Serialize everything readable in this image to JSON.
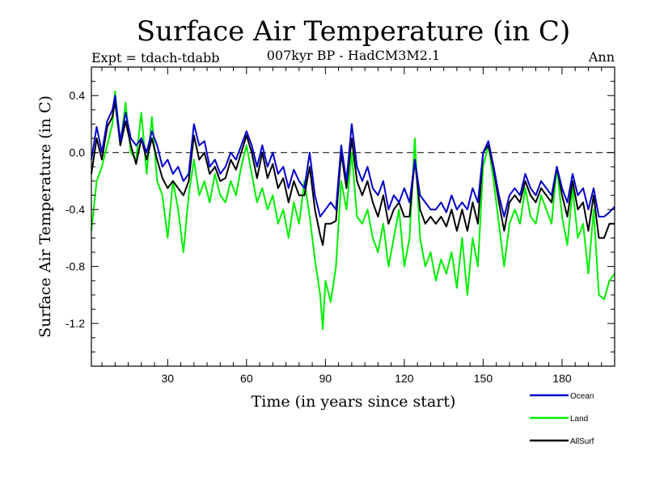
{
  "chart_data": {
    "type": "line",
    "title": "Surface Air Temperature (in C)",
    "subtitle": "007kyr BP - HadCM3M2.1",
    "left_label": "Expt = tdach-tdabb",
    "right_label": "Ann",
    "xlabel": "Time (in years since start)",
    "ylabel": "Surface Air Temperature (in C)",
    "xlim": [
      1,
      200
    ],
    "ylim": [
      -1.5,
      0.6
    ],
    "xticks": [
      30,
      60,
      90,
      120,
      150,
      180
    ],
    "yticks": [
      0.4,
      0.0,
      -0.4,
      -0.8,
      -1.2
    ],
    "ytick_labels": [
      "0.4",
      "0.0",
      "-0.4",
      "-0.8",
      "-1.2"
    ],
    "reference_line": 0.0,
    "x_start": 1,
    "series": [
      {
        "name": "Ocean",
        "color": "#0000cc",
        "anchors": [
          [
            1,
            -0.05
          ],
          [
            3,
            0.18
          ],
          [
            5,
            0.0
          ],
          [
            7,
            0.22
          ],
          [
            9,
            0.3
          ],
          [
            10,
            0.4
          ],
          [
            12,
            0.08
          ],
          [
            14,
            0.28
          ],
          [
            16,
            0.1
          ],
          [
            18,
            0.05
          ],
          [
            20,
            0.1
          ],
          [
            22,
            0.0
          ],
          [
            24,
            0.15
          ],
          [
            26,
            0.05
          ],
          [
            28,
            -0.1
          ],
          [
            30,
            -0.05
          ],
          [
            32,
            -0.15
          ],
          [
            34,
            -0.1
          ],
          [
            36,
            -0.2
          ],
          [
            38,
            -0.15
          ],
          [
            40,
            0.2
          ],
          [
            42,
            0.05
          ],
          [
            44,
            0.08
          ],
          [
            46,
            -0.1
          ],
          [
            48,
            -0.05
          ],
          [
            50,
            -0.15
          ],
          [
            52,
            -0.1
          ],
          [
            54,
            0.0
          ],
          [
            56,
            -0.05
          ],
          [
            58,
            0.05
          ],
          [
            60,
            0.15
          ],
          [
            62,
            0.05
          ],
          [
            64,
            -0.1
          ],
          [
            66,
            0.05
          ],
          [
            68,
            -0.1
          ],
          [
            70,
            0.0
          ],
          [
            72,
            -0.15
          ],
          [
            74,
            -0.1
          ],
          [
            76,
            -0.25
          ],
          [
            78,
            -0.12
          ],
          [
            80,
            -0.2
          ],
          [
            82,
            -0.25
          ],
          [
            84,
            0.0
          ],
          [
            86,
            -0.3
          ],
          [
            88,
            -0.45
          ],
          [
            90,
            -0.4
          ],
          [
            92,
            -0.35
          ],
          [
            94,
            -0.4
          ],
          [
            96,
            0.05
          ],
          [
            98,
            -0.2
          ],
          [
            100,
            0.2
          ],
          [
            102,
            -0.1
          ],
          [
            104,
            -0.2
          ],
          [
            106,
            -0.1
          ],
          [
            108,
            -0.25
          ],
          [
            110,
            -0.3
          ],
          [
            112,
            -0.2
          ],
          [
            114,
            -0.4
          ],
          [
            116,
            -0.3
          ],
          [
            118,
            -0.35
          ],
          [
            120,
            -0.25
          ],
          [
            122,
            -0.35
          ],
          [
            124,
            -0.05
          ],
          [
            126,
            -0.3
          ],
          [
            128,
            -0.35
          ],
          [
            130,
            -0.4
          ],
          [
            132,
            -0.4
          ],
          [
            134,
            -0.35
          ],
          [
            136,
            -0.42
          ],
          [
            138,
            -0.3
          ],
          [
            140,
            -0.4
          ],
          [
            142,
            -0.35
          ],
          [
            144,
            -0.4
          ],
          [
            146,
            -0.25
          ],
          [
            148,
            -0.35
          ],
          [
            150,
            0.0
          ],
          [
            152,
            0.08
          ],
          [
            154,
            -0.1
          ],
          [
            156,
            -0.3
          ],
          [
            158,
            -0.45
          ],
          [
            160,
            -0.3
          ],
          [
            162,
            -0.25
          ],
          [
            164,
            -0.3
          ],
          [
            166,
            -0.15
          ],
          [
            168,
            -0.25
          ],
          [
            170,
            -0.3
          ],
          [
            172,
            -0.2
          ],
          [
            174,
            -0.25
          ],
          [
            176,
            -0.3
          ],
          [
            178,
            -0.1
          ],
          [
            180,
            -0.25
          ],
          [
            182,
            -0.35
          ],
          [
            184,
            -0.15
          ],
          [
            186,
            -0.3
          ],
          [
            188,
            -0.25
          ],
          [
            190,
            -0.4
          ],
          [
            192,
            -0.25
          ],
          [
            194,
            -0.45
          ],
          [
            196,
            -0.45
          ],
          [
            198,
            -0.42
          ],
          [
            200,
            -0.38
          ]
        ]
      },
      {
        "name": "Land",
        "color": "#00ee00",
        "anchors": [
          [
            1,
            -0.55
          ],
          [
            3,
            -0.2
          ],
          [
            5,
            -0.1
          ],
          [
            7,
            0.05
          ],
          [
            9,
            0.2
          ],
          [
            10,
            0.43
          ],
          [
            12,
            0.05
          ],
          [
            14,
            0.35
          ],
          [
            16,
            0.0
          ],
          [
            18,
            -0.05
          ],
          [
            20,
            0.28
          ],
          [
            22,
            -0.15
          ],
          [
            24,
            0.25
          ],
          [
            26,
            -0.2
          ],
          [
            28,
            -0.3
          ],
          [
            30,
            -0.6
          ],
          [
            32,
            -0.2
          ],
          [
            34,
            -0.4
          ],
          [
            36,
            -0.7
          ],
          [
            38,
            -0.3
          ],
          [
            40,
            -0.05
          ],
          [
            42,
            -0.3
          ],
          [
            44,
            -0.2
          ],
          [
            46,
            -0.35
          ],
          [
            48,
            -0.15
          ],
          [
            50,
            -0.3
          ],
          [
            52,
            -0.35
          ],
          [
            54,
            -0.2
          ],
          [
            56,
            -0.3
          ],
          [
            58,
            -0.1
          ],
          [
            60,
            0.05
          ],
          [
            62,
            -0.15
          ],
          [
            64,
            -0.35
          ],
          [
            66,
            -0.25
          ],
          [
            68,
            -0.4
          ],
          [
            70,
            -0.3
          ],
          [
            72,
            -0.5
          ],
          [
            74,
            -0.4
          ],
          [
            76,
            -0.6
          ],
          [
            78,
            -0.35
          ],
          [
            80,
            -0.5
          ],
          [
            82,
            -0.2
          ],
          [
            84,
            -0.45
          ],
          [
            86,
            -0.75
          ],
          [
            88,
            -1.0
          ],
          [
            89,
            -1.24
          ],
          [
            90,
            -0.9
          ],
          [
            92,
            -1.05
          ],
          [
            94,
            -0.8
          ],
          [
            96,
            -0.2
          ],
          [
            98,
            -0.4
          ],
          [
            100,
            0.0
          ],
          [
            102,
            -0.45
          ],
          [
            104,
            -0.5
          ],
          [
            106,
            -0.4
          ],
          [
            108,
            -0.6
          ],
          [
            110,
            -0.7
          ],
          [
            112,
            -0.5
          ],
          [
            114,
            -0.8
          ],
          [
            116,
            -0.6
          ],
          [
            118,
            -0.4
          ],
          [
            120,
            -0.8
          ],
          [
            122,
            -0.6
          ],
          [
            124,
            0.1
          ],
          [
            126,
            -0.6
          ],
          [
            128,
            -0.8
          ],
          [
            130,
            -0.7
          ],
          [
            132,
            -0.9
          ],
          [
            134,
            -0.75
          ],
          [
            136,
            -0.85
          ],
          [
            138,
            -0.7
          ],
          [
            140,
            -0.95
          ],
          [
            142,
            -0.6
          ],
          [
            144,
            -1.0
          ],
          [
            146,
            -0.6
          ],
          [
            148,
            -0.8
          ],
          [
            150,
            -0.1
          ],
          [
            152,
            0.05
          ],
          [
            154,
            -0.2
          ],
          [
            156,
            -0.5
          ],
          [
            158,
            -0.8
          ],
          [
            160,
            -0.5
          ],
          [
            162,
            -0.4
          ],
          [
            164,
            -0.5
          ],
          [
            166,
            -0.25
          ],
          [
            168,
            -0.45
          ],
          [
            170,
            -0.5
          ],
          [
            172,
            -0.3
          ],
          [
            174,
            -0.4
          ],
          [
            176,
            -0.5
          ],
          [
            178,
            -0.1
          ],
          [
            180,
            -0.45
          ],
          [
            182,
            -0.65
          ],
          [
            184,
            -0.25
          ],
          [
            186,
            -0.6
          ],
          [
            188,
            -0.5
          ],
          [
            190,
            -0.85
          ],
          [
            192,
            -0.4
          ],
          [
            194,
            -1.0
          ],
          [
            196,
            -1.03
          ],
          [
            198,
            -0.9
          ],
          [
            200,
            -0.85
          ]
        ]
      },
      {
        "name": "AllSurf",
        "color": "#000000",
        "anchors": [
          [
            1,
            -0.15
          ],
          [
            3,
            0.1
          ],
          [
            5,
            -0.05
          ],
          [
            7,
            0.18
          ],
          [
            9,
            0.25
          ],
          [
            10,
            0.36
          ],
          [
            12,
            0.05
          ],
          [
            14,
            0.22
          ],
          [
            16,
            0.05
          ],
          [
            18,
            -0.08
          ],
          [
            20,
            0.1
          ],
          [
            22,
            -0.05
          ],
          [
            24,
            0.1
          ],
          [
            26,
            -0.05
          ],
          [
            28,
            -0.18
          ],
          [
            30,
            -0.25
          ],
          [
            32,
            -0.2
          ],
          [
            34,
            -0.25
          ],
          [
            36,
            -0.3
          ],
          [
            38,
            -0.2
          ],
          [
            40,
            0.12
          ],
          [
            42,
            -0.05
          ],
          [
            44,
            0.0
          ],
          [
            46,
            -0.15
          ],
          [
            48,
            -0.1
          ],
          [
            50,
            -0.2
          ],
          [
            52,
            -0.18
          ],
          [
            54,
            -0.05
          ],
          [
            56,
            -0.12
          ],
          [
            58,
            0.0
          ],
          [
            60,
            0.12
          ],
          [
            62,
            0.0
          ],
          [
            64,
            -0.18
          ],
          [
            66,
            0.0
          ],
          [
            68,
            -0.18
          ],
          [
            70,
            -0.08
          ],
          [
            72,
            -0.25
          ],
          [
            74,
            -0.18
          ],
          [
            76,
            -0.35
          ],
          [
            78,
            -0.2
          ],
          [
            80,
            -0.3
          ],
          [
            82,
            -0.3
          ],
          [
            84,
            -0.1
          ],
          [
            86,
            -0.4
          ],
          [
            88,
            -0.58
          ],
          [
            89,
            -0.65
          ],
          [
            90,
            -0.5
          ],
          [
            92,
            -0.5
          ],
          [
            94,
            -0.48
          ],
          [
            96,
            0.0
          ],
          [
            98,
            -0.25
          ],
          [
            100,
            0.1
          ],
          [
            102,
            -0.2
          ],
          [
            104,
            -0.3
          ],
          [
            106,
            -0.2
          ],
          [
            108,
            -0.35
          ],
          [
            110,
            -0.45
          ],
          [
            112,
            -0.3
          ],
          [
            114,
            -0.5
          ],
          [
            116,
            -0.4
          ],
          [
            118,
            -0.35
          ],
          [
            120,
            -0.45
          ],
          [
            122,
            -0.45
          ],
          [
            124,
            -0.05
          ],
          [
            126,
            -0.4
          ],
          [
            128,
            -0.5
          ],
          [
            130,
            -0.45
          ],
          [
            132,
            -0.5
          ],
          [
            134,
            -0.45
          ],
          [
            136,
            -0.52
          ],
          [
            138,
            -0.4
          ],
          [
            140,
            -0.55
          ],
          [
            142,
            -0.4
          ],
          [
            144,
            -0.55
          ],
          [
            146,
            -0.35
          ],
          [
            148,
            -0.5
          ],
          [
            150,
            0.0
          ],
          [
            152,
            0.05
          ],
          [
            154,
            -0.12
          ],
          [
            156,
            -0.35
          ],
          [
            158,
            -0.55
          ],
          [
            160,
            -0.35
          ],
          [
            162,
            -0.3
          ],
          [
            164,
            -0.35
          ],
          [
            166,
            -0.2
          ],
          [
            168,
            -0.3
          ],
          [
            170,
            -0.35
          ],
          [
            172,
            -0.25
          ],
          [
            174,
            -0.3
          ],
          [
            176,
            -0.35
          ],
          [
            178,
            -0.1
          ],
          [
            180,
            -0.3
          ],
          [
            182,
            -0.45
          ],
          [
            184,
            -0.2
          ],
          [
            186,
            -0.4
          ],
          [
            188,
            -0.35
          ],
          [
            190,
            -0.55
          ],
          [
            192,
            -0.3
          ],
          [
            194,
            -0.6
          ],
          [
            196,
            -0.6
          ],
          [
            198,
            -0.5
          ],
          [
            200,
            -0.5
          ]
        ]
      }
    ],
    "legend": [
      {
        "name": "Ocean",
        "color": "#0000cc"
      },
      {
        "name": "Land",
        "color": "#00ee00"
      },
      {
        "name": "AllSurf",
        "color": "#000000"
      }
    ]
  }
}
